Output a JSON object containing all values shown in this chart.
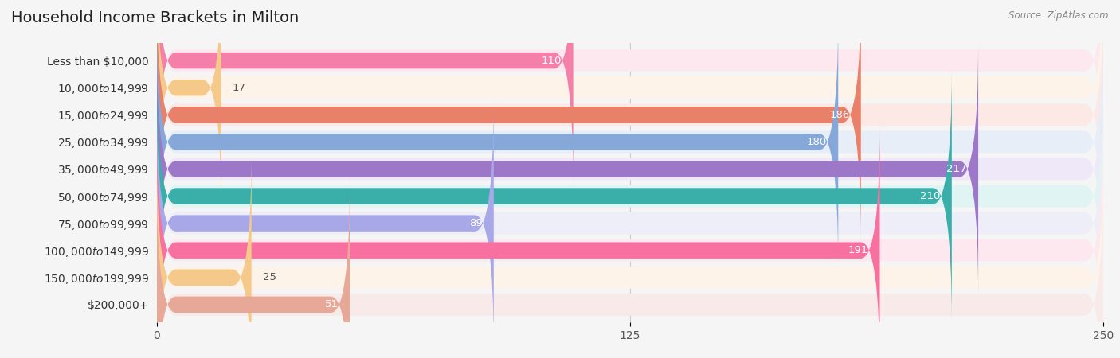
{
  "title": "Household Income Brackets in Milton",
  "source": "Source: ZipAtlas.com",
  "categories": [
    "Less than $10,000",
    "$10,000 to $14,999",
    "$15,000 to $24,999",
    "$25,000 to $34,999",
    "$35,000 to $49,999",
    "$50,000 to $74,999",
    "$75,000 to $99,999",
    "$100,000 to $149,999",
    "$150,000 to $199,999",
    "$200,000+"
  ],
  "values": [
    110,
    17,
    186,
    180,
    217,
    210,
    89,
    191,
    25,
    51
  ],
  "bar_colors": [
    "#F47FA8",
    "#F5C98A",
    "#E8806A",
    "#85A8D8",
    "#9E78C8",
    "#3AAFAA",
    "#A8A8E8",
    "#F870A0",
    "#F5C98A",
    "#E8A898"
  ],
  "bar_bg_colors": [
    "#FCE8EE",
    "#FDF3E8",
    "#FCE8E4",
    "#E8EEF8",
    "#EEE8F8",
    "#E0F4F4",
    "#EEEEF8",
    "#FDE8F0",
    "#FDF3E8",
    "#F8EAE8"
  ],
  "xlim": [
    0,
    250
  ],
  "xticks": [
    0,
    125,
    250
  ],
  "value_label_color_inside": "#ffffff",
  "value_label_color_outside": "#555555",
  "background_color": "#f5f5f5",
  "title_fontsize": 14,
  "axis_fontsize": 10,
  "bar_fontsize": 9.5,
  "label_fontsize": 10,
  "inside_threshold": 40
}
